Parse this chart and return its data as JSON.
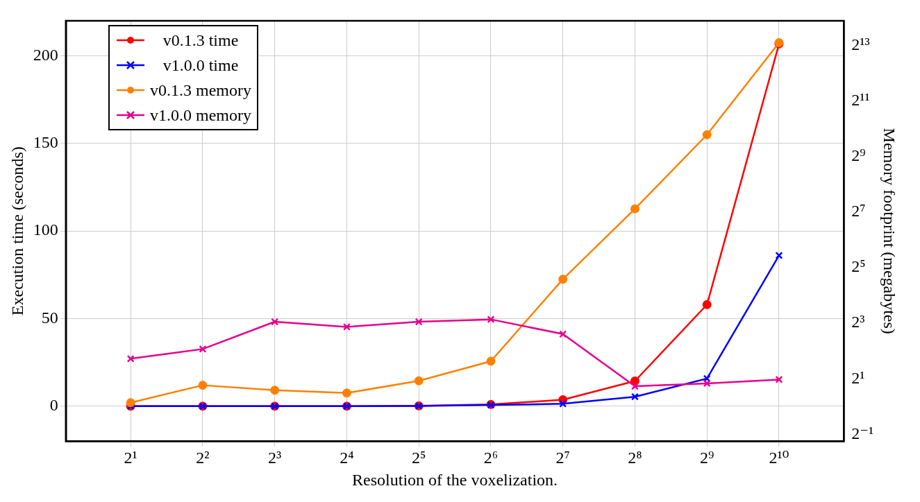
{
  "chart_data": {
    "type": "line",
    "xlabel": "Resolution of the voxelization.",
    "ylabel": "Execution time (seconds)",
    "y2label": "Memory footprint (megabytes)",
    "categories": [
      "2¹",
      "2²",
      "2³",
      "2⁴",
      "2⁵",
      "2⁶",
      "2⁷",
      "2⁸",
      "2⁹",
      "2¹⁰"
    ],
    "series": [
      {
        "name": "v0.1.3 time",
        "color": "#ff0000",
        "marker": "circle",
        "values": [
          0,
          0,
          0,
          0,
          0.2,
          1.0,
          3.7,
          14.4,
          58,
          206.8
        ]
      },
      {
        "name": "v1.0.0 time",
        "color": "#0000ff",
        "marker": "cross",
        "values": [
          0,
          0,
          0,
          0,
          0.1,
          0.7,
          1.4,
          5.4,
          15.8,
          86.1
        ]
      },
      {
        "name": "v0.1.3 memory",
        "color": "#ff8000",
        "marker": "circle",
        "axis": "y2",
        "values": [
          1.1,
          1.7,
          1.5,
          1.4,
          1.9,
          3.1,
          24,
          139,
          885,
          8800
        ]
      },
      {
        "name": "v1.0.0 memory",
        "color": "#e6008c",
        "marker": "cross",
        "axis": "y2",
        "values": [
          3.3,
          4.2,
          8.3,
          7.3,
          8.3,
          8.8,
          6.1,
          1.66,
          1.78,
          1.96
        ]
      }
    ],
    "log": "y2",
    "ylim": [
      -20,
      220
    ],
    "yticks": [
      0,
      50,
      100,
      150,
      200
    ],
    "y2lim": [
      0.42,
      15200
    ],
    "y2ticks": [
      {
        "value": 0.5,
        "label": "2⁻¹"
      },
      {
        "value": 2,
        "label": "2¹"
      },
      {
        "value": 8,
        "label": "2³"
      },
      {
        "value": 32,
        "label": "2⁵"
      },
      {
        "value": 128,
        "label": "2⁷"
      },
      {
        "value": 512,
        "label": "2⁹"
      },
      {
        "value": 2048,
        "label": "2¹¹"
      },
      {
        "value": 8192,
        "label": "2¹³"
      }
    ],
    "grid": true,
    "legend": "top left",
    "line_style": "solid"
  }
}
